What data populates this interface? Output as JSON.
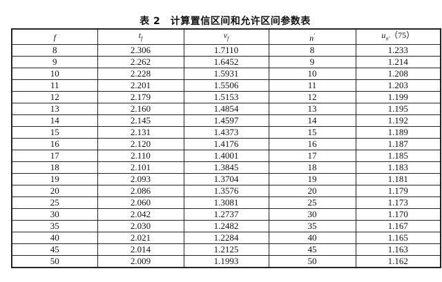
{
  "title": "表 2　计算置信区间和允许区间参数表",
  "headers": [
    {
      "main": "f",
      "sub": "",
      "sup": "",
      "suffix": ""
    },
    {
      "main": "t",
      "sub": "f",
      "sup": "",
      "suffix": ""
    },
    {
      "main": "v",
      "sub": "f",
      "sup": "",
      "suffix": ""
    },
    {
      "main": "n",
      "sub": "",
      "sup": "'",
      "suffix": ""
    },
    {
      "main": "u",
      "sub": "n'",
      "sup": "",
      "suffix": "（75）"
    }
  ],
  "rows": [
    [
      "8",
      "2.306",
      "1.7110",
      "8",
      "1.233"
    ],
    [
      "9",
      "2.262",
      "1.6452",
      "9",
      "1.214"
    ],
    [
      "10",
      "2.228",
      "1.5931",
      "10",
      "1.208"
    ],
    [
      "11",
      "2.201",
      "1.5506",
      "11",
      "1.203"
    ],
    [
      "12",
      "2.179",
      "1.5153",
      "12",
      "1.199"
    ],
    [
      "13",
      "2.160",
      "1.4854",
      "13",
      "1.195"
    ],
    [
      "14",
      "2.145",
      "1.4597",
      "14",
      "1.192"
    ],
    [
      "15",
      "2.131",
      "1.4373",
      "15",
      "1.189"
    ],
    [
      "16",
      "2.120",
      "1.4176",
      "16",
      "1.187"
    ],
    [
      "17",
      "2.110",
      "1.4001",
      "17",
      "1.185"
    ],
    [
      "18",
      "2.101",
      "1.3845",
      "18",
      "1.183"
    ],
    [
      "19",
      "2.093",
      "1.3704",
      "19",
      "1.181"
    ],
    [
      "20",
      "2.086",
      "1.3576",
      "20",
      "1.179"
    ],
    [
      "25",
      "2.060",
      "1.3081",
      "25",
      "1.173"
    ],
    [
      "30",
      "2.042",
      "1.2737",
      "30",
      "1.170"
    ],
    [
      "35",
      "2.030",
      "1.2482",
      "35",
      "1.167"
    ],
    [
      "40",
      "2.021",
      "1.2284",
      "40",
      "1.165"
    ],
    [
      "45",
      "2.014",
      "1.2125",
      "45",
      "1.163"
    ],
    [
      "50",
      "2.009",
      "1.1993",
      "50",
      "1.162"
    ]
  ]
}
